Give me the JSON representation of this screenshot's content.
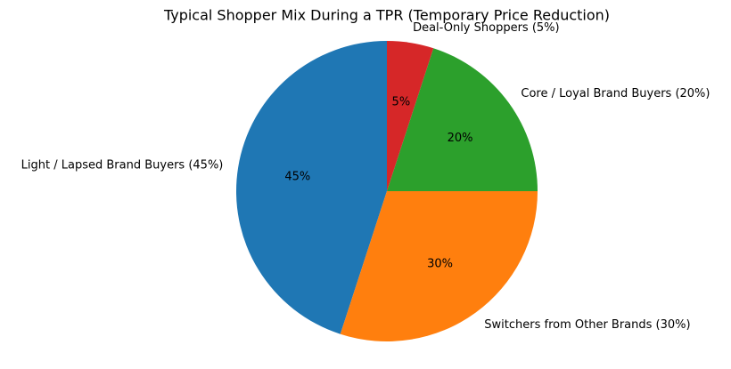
{
  "chart_data": {
    "type": "pie",
    "title": "Typical Shopper Mix During a TPR (Temporary Price Reduction)",
    "categories": [
      "Light / Lapsed Brand Buyers (45%)",
      "Switchers from Other Brands (30%)",
      "Core / Loyal Brand Buyers (20%)",
      "Deal-Only Shoppers (5%)"
    ],
    "values": [
      45,
      30,
      20,
      5
    ],
    "value_labels": [
      "45%",
      "30%",
      "20%",
      "5%"
    ],
    "colors": [
      "#1f77b4",
      "#ff7f0e",
      "#2ca02c",
      "#d62728"
    ]
  }
}
